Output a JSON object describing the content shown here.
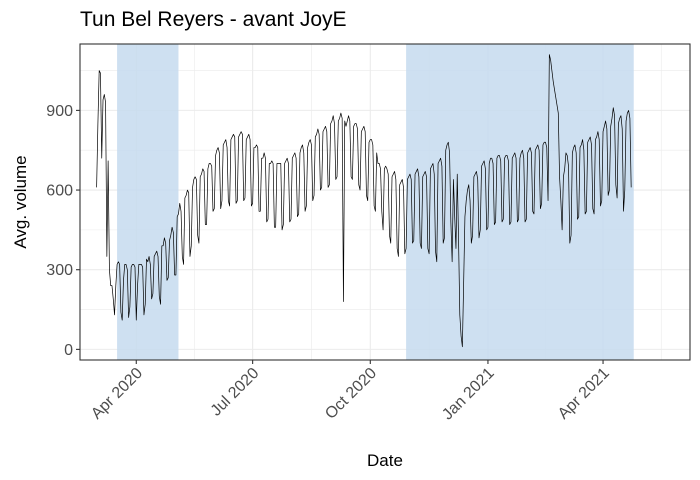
{
  "chart_data": {
    "type": "line",
    "title": "Tun Bel Reyers - avant JoyE",
    "xlabel": "Date",
    "ylabel": "Avg. volume",
    "xlim": [
      "2020-02-17",
      "2021-06-08"
    ],
    "ylim": [
      -40,
      1150
    ],
    "x_ticks": [
      {
        "date": "2020-04-01",
        "label": "Apr 2020"
      },
      {
        "date": "2020-07-01",
        "label": "Jul 2020"
      },
      {
        "date": "2020-10-01",
        "label": "Oct 2020"
      },
      {
        "date": "2021-01-01",
        "label": "Jan 2021"
      },
      {
        "date": "2021-04-01",
        "label": "Apr 2021"
      }
    ],
    "y_ticks": [
      0,
      300,
      600,
      900
    ],
    "grid": true,
    "shaded_periods": [
      {
        "start": "2020-03-17",
        "end": "2020-05-04"
      },
      {
        "start": "2020-10-29",
        "end": "2021-04-25"
      }
    ],
    "colors": {
      "line": "#000000",
      "shade": "#c6dbef",
      "grid": "#ebebeb",
      "border": "#333333"
    },
    "series": [
      {
        "start_date": "2020-03-01",
        "values": [
          610,
          850,
          1050,
          1040,
          720,
          940,
          960,
          930,
          350,
          710,
          300,
          240,
          240,
          190,
          130,
          240,
          320,
          330,
          320,
          140,
          110,
          260,
          320,
          320,
          300,
          120,
          160,
          310,
          320,
          320,
          310,
          110,
          240,
          320,
          320,
          320,
          310,
          130,
          170,
          340,
          330,
          350,
          320,
          190,
          210,
          350,
          360,
          370,
          350,
          200,
          170,
          390,
          390,
          420,
          400,
          260,
          270,
          410,
          430,
          460,
          440,
          280,
          280,
          500,
          510,
          550,
          520,
          350,
          320,
          570,
          580,
          600,
          590,
          350,
          390,
          610,
          640,
          650,
          640,
          430,
          400,
          650,
          660,
          680,
          670,
          470,
          470,
          680,
          700,
          700,
          690,
          520,
          530,
          730,
          750,
          760,
          740,
          530,
          560,
          770,
          780,
          790,
          760,
          560,
          540,
          790,
          800,
          810,
          800,
          550,
          560,
          800,
          810,
          820,
          810,
          560,
          570,
          790,
          800,
          810,
          790,
          540,
          550,
          760,
          760,
          770,
          760,
          520,
          520,
          720,
          720,
          740,
          720,
          480,
          490,
          700,
          700,
          710,
          700,
          460,
          460,
          700,
          700,
          700,
          700,
          450,
          470,
          700,
          710,
          720,
          700,
          480,
          490,
          720,
          730,
          740,
          720,
          500,
          510,
          740,
          760,
          770,
          740,
          520,
          540,
          760,
          780,
          790,
          770,
          560,
          580,
          800,
          810,
          830,
          810,
          600,
          610,
          820,
          830,
          840,
          820,
          610,
          620,
          850,
          860,
          880,
          850,
          640,
          650,
          860,
          870,
          890,
          870,
          180,
          860,
          840,
          860,
          880,
          860,
          650,
          640,
          840,
          850,
          850,
          830,
          620,
          600,
          820,
          830,
          840,
          820,
          580,
          560,
          780,
          790,
          790,
          770,
          540,
          520,
          740,
          700,
          700,
          680,
          520,
          450,
          680,
          690,
          680,
          660,
          430,
          400,
          650,
          660,
          670,
          640,
          380,
          350,
          620,
          630,
          640,
          610,
          360,
          380,
          640,
          650,
          660,
          640,
          400,
          410,
          660,
          670,
          680,
          650,
          400,
          380,
          650,
          660,
          670,
          650,
          380,
          360,
          680,
          690,
          700,
          660,
          370,
          330,
          700,
          710,
          720,
          690,
          400,
          420,
          750,
          770,
          780,
          740,
          480,
          330,
          640,
          500,
          380,
          660,
          420,
          130,
          50,
          10,
          250,
          500,
          560,
          600,
          620,
          560,
          400,
          430,
          650,
          660,
          670,
          640,
          420,
          450,
          690,
          700,
          710,
          680,
          450,
          460,
          700,
          720,
          720,
          700,
          470,
          480,
          720,
          730,
          730,
          710,
          480,
          490,
          720,
          730,
          730,
          710,
          470,
          480,
          720,
          730,
          740,
          720,
          480,
          490,
          720,
          740,
          750,
          720,
          480,
          490,
          740,
          750,
          760,
          740,
          520,
          510,
          750,
          760,
          770,
          750,
          530,
          550,
          770,
          780,
          780,
          760,
          560,
          1110,
          1090,
          1050,
          1010,
          980,
          950,
          920,
          890,
          650,
          560,
          450,
          650,
          680,
          740,
          730,
          690,
          400,
          430,
          740,
          760,
          770,
          740,
          490,
          500,
          760,
          770,
          790,
          750,
          510,
          520,
          780,
          790,
          800,
          770,
          530,
          510,
          790,
          800,
          820,
          790,
          540,
          560,
          820,
          840,
          860,
          830,
          580,
          600,
          840,
          870,
          910,
          880,
          620,
          570,
          850,
          870,
          880,
          830,
          520,
          600,
          860,
          890,
          900,
          870,
          610
        ]
      }
    ]
  }
}
